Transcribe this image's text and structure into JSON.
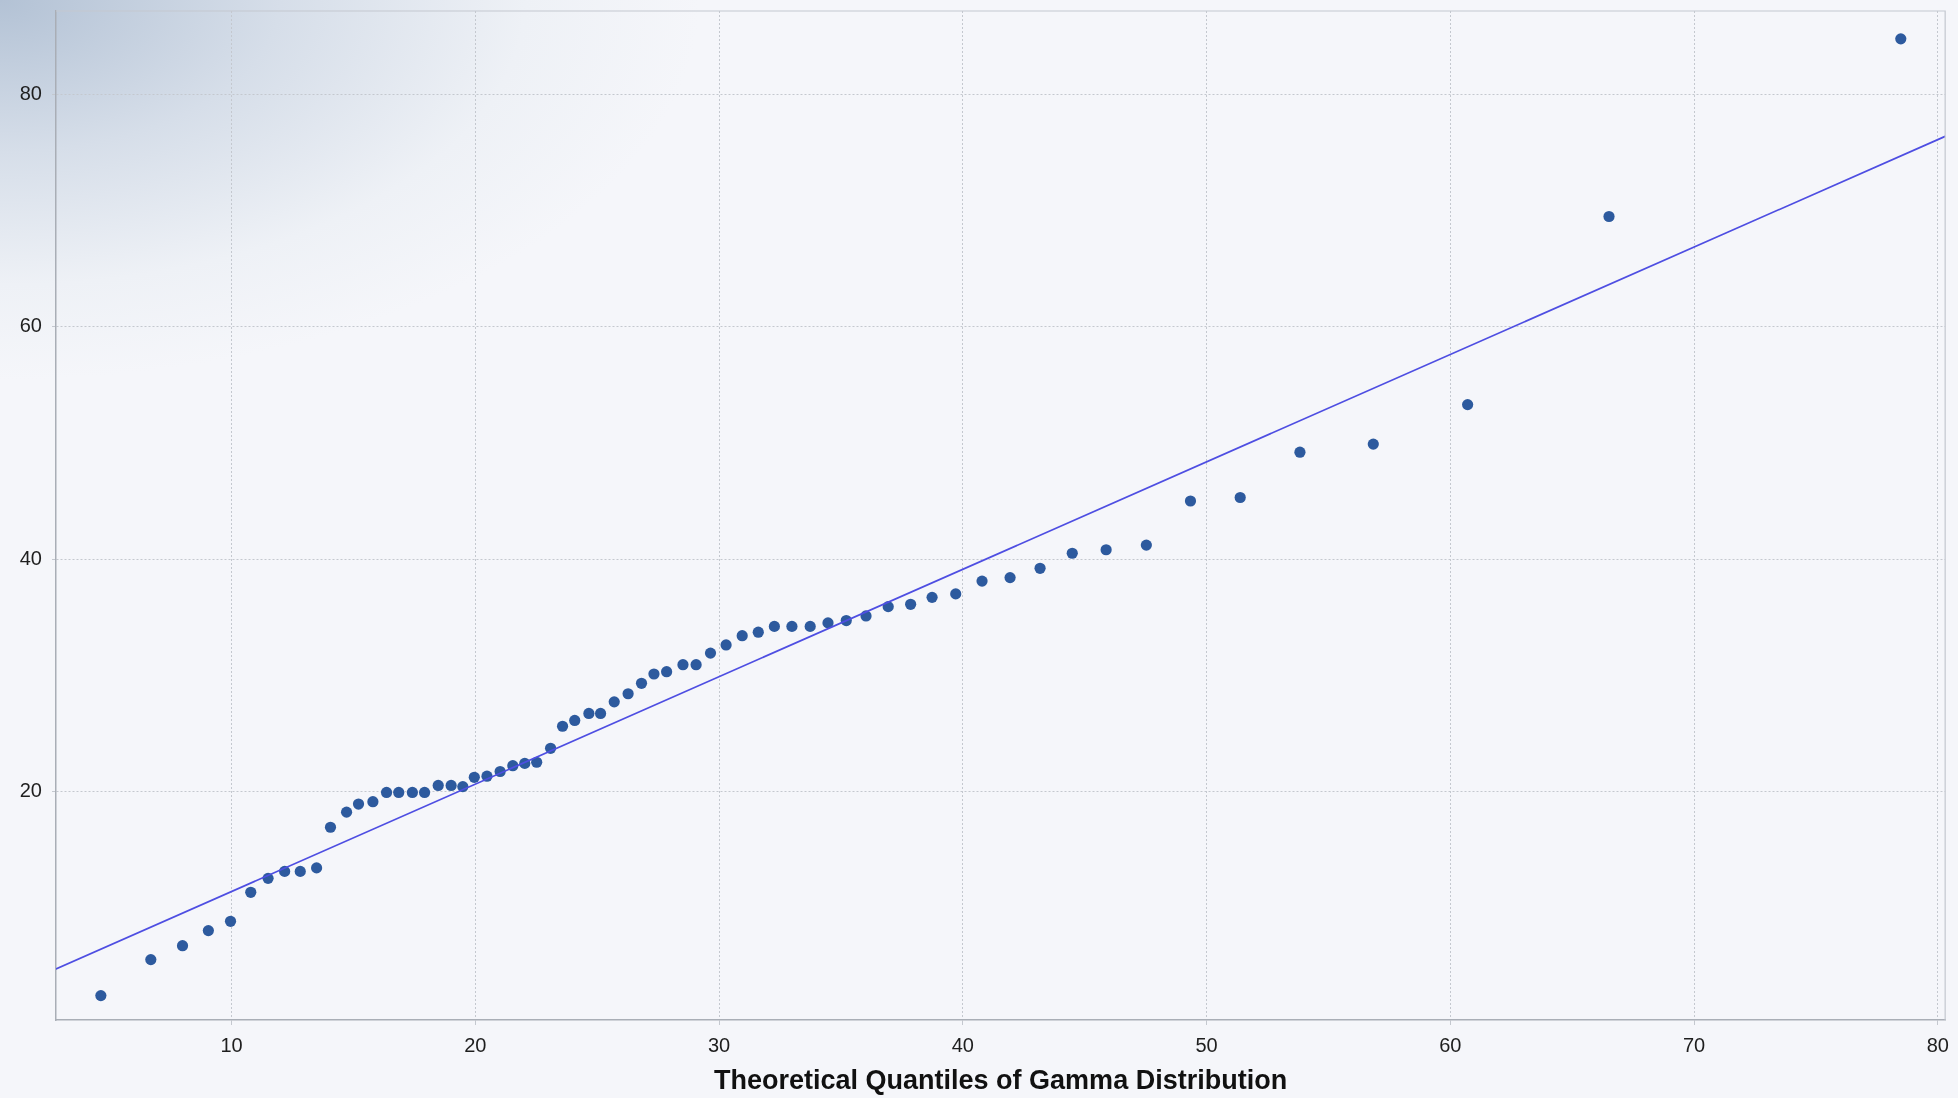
{
  "chart_data": {
    "type": "scatter",
    "xlabel": "Theoretical Quantiles of Gamma Distribution",
    "xlim": [
      2.8,
      80.3
    ],
    "xticks": [
      10,
      20,
      30,
      40,
      50,
      60,
      70,
      80
    ],
    "ylim": [
      0.3,
      87.2
    ],
    "yticks": [
      20,
      40,
      60,
      80
    ],
    "grid": true,
    "series": [
      {
        "type": "scatter",
        "color": "#2d5a9e",
        "marker": "circle",
        "x": [
          4.64,
          6.69,
          7.99,
          9.05,
          9.96,
          10.79,
          11.5,
          12.18,
          12.82,
          13.49,
          14.06,
          14.72,
          15.21,
          15.8,
          16.36,
          16.86,
          17.42,
          17.92,
          18.48,
          19.01,
          19.49,
          19.96,
          20.48,
          21.02,
          21.54,
          22.03,
          22.52,
          23.09,
          23.58,
          24.08,
          24.66,
          25.14,
          25.7,
          26.27,
          26.82,
          27.33,
          27.85,
          28.52,
          29.06,
          29.65,
          30.29,
          30.95,
          31.61,
          32.27,
          32.99,
          33.74,
          34.47,
          35.22,
          36.03,
          36.94,
          37.86,
          38.74,
          39.71,
          40.79,
          41.94,
          43.17,
          44.49,
          45.88,
          47.53,
          49.34,
          51.38,
          53.83,
          56.84,
          60.71,
          66.51,
          78.48
        ],
        "values": [
          2.4,
          5.5,
          6.7,
          8.0,
          8.8,
          11.3,
          12.5,
          13.1,
          13.1,
          13.4,
          16.9,
          18.2,
          18.9,
          19.1,
          19.9,
          19.9,
          19.9,
          19.9,
          20.5,
          20.5,
          20.4,
          21.2,
          21.3,
          21.7,
          22.2,
          22.4,
          22.5,
          23.7,
          25.6,
          26.1,
          26.7,
          26.7,
          27.7,
          28.4,
          29.3,
          30.1,
          30.3,
          30.9,
          30.9,
          31.9,
          32.6,
          33.4,
          33.7,
          34.2,
          34.2,
          34.2,
          34.5,
          34.7,
          35.1,
          35.9,
          36.1,
          36.7,
          37.0,
          38.1,
          38.4,
          39.2,
          40.5,
          40.8,
          41.2,
          45.0,
          45.3,
          49.2,
          49.9,
          53.3,
          69.5,
          84.8
        ]
      },
      {
        "type": "line",
        "color": "#4e4ee2",
        "marker": "none",
        "line_style": "solid",
        "x": [
          2.8,
          80.3
        ],
        "values": [
          4.7,
          76.4
        ]
      }
    ]
  }
}
